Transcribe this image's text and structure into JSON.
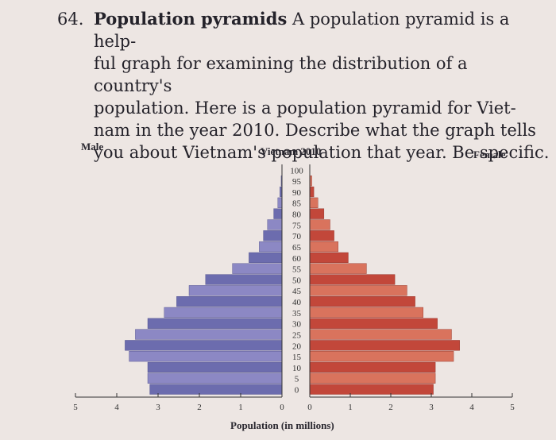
{
  "problem": {
    "number": "64.",
    "title": "Population pyramids",
    "lines": [
      "A population pyramid is a help-",
      "ful graph for examining the distribution of a country's",
      "population. Here is a population pyramid for Viet-",
      "nam in the year 2010. Describe what the graph tells",
      "you about Vietnam's population that year. Be specific."
    ]
  },
  "colors": {
    "male_bar": "#8c88c4",
    "male_bar_dark": "#6c6cae",
    "female_bar": "#d9735d",
    "female_bar_dark": "#c2473a",
    "axis": "#333333"
  },
  "chart_data": {
    "type": "bar",
    "orientation": "horizontal-pyramid",
    "title": "Vietnam 2010",
    "left_label": "Male",
    "right_label": "Female",
    "xlabel": "Population (in millions)",
    "xlim": [
      0,
      5
    ],
    "x_ticks_left": [
      "5",
      "4",
      "3",
      "2",
      "1",
      "0"
    ],
    "x_ticks_right": [
      "0",
      "1",
      "2",
      "3",
      "4",
      "5"
    ],
    "age_labels": [
      "100",
      "95",
      "90",
      "85",
      "80",
      "75",
      "70",
      "65",
      "60",
      "55",
      "50",
      "45",
      "40",
      "35",
      "30",
      "25",
      "20",
      "15",
      "10",
      "5",
      "0"
    ],
    "age_groups": [
      "100",
      "95",
      "90",
      "85",
      "80",
      "75",
      "70",
      "65",
      "60",
      "55",
      "50",
      "45",
      "40",
      "35",
      "30",
      "25",
      "20",
      "15",
      "10",
      "5",
      "0"
    ],
    "series": [
      {
        "name": "Male",
        "values": [
          0.0,
          0.02,
          0.05,
          0.1,
          0.2,
          0.35,
          0.45,
          0.55,
          0.8,
          1.2,
          1.85,
          2.25,
          2.55,
          2.85,
          3.25,
          3.55,
          3.8,
          3.7,
          3.25,
          3.25,
          3.2
        ]
      },
      {
        "name": "Female",
        "values": [
          0.0,
          0.05,
          0.1,
          0.2,
          0.35,
          0.5,
          0.6,
          0.7,
          0.95,
          1.4,
          2.1,
          2.4,
          2.6,
          2.8,
          3.15,
          3.5,
          3.7,
          3.55,
          3.1,
          3.1,
          3.05
        ]
      }
    ]
  }
}
